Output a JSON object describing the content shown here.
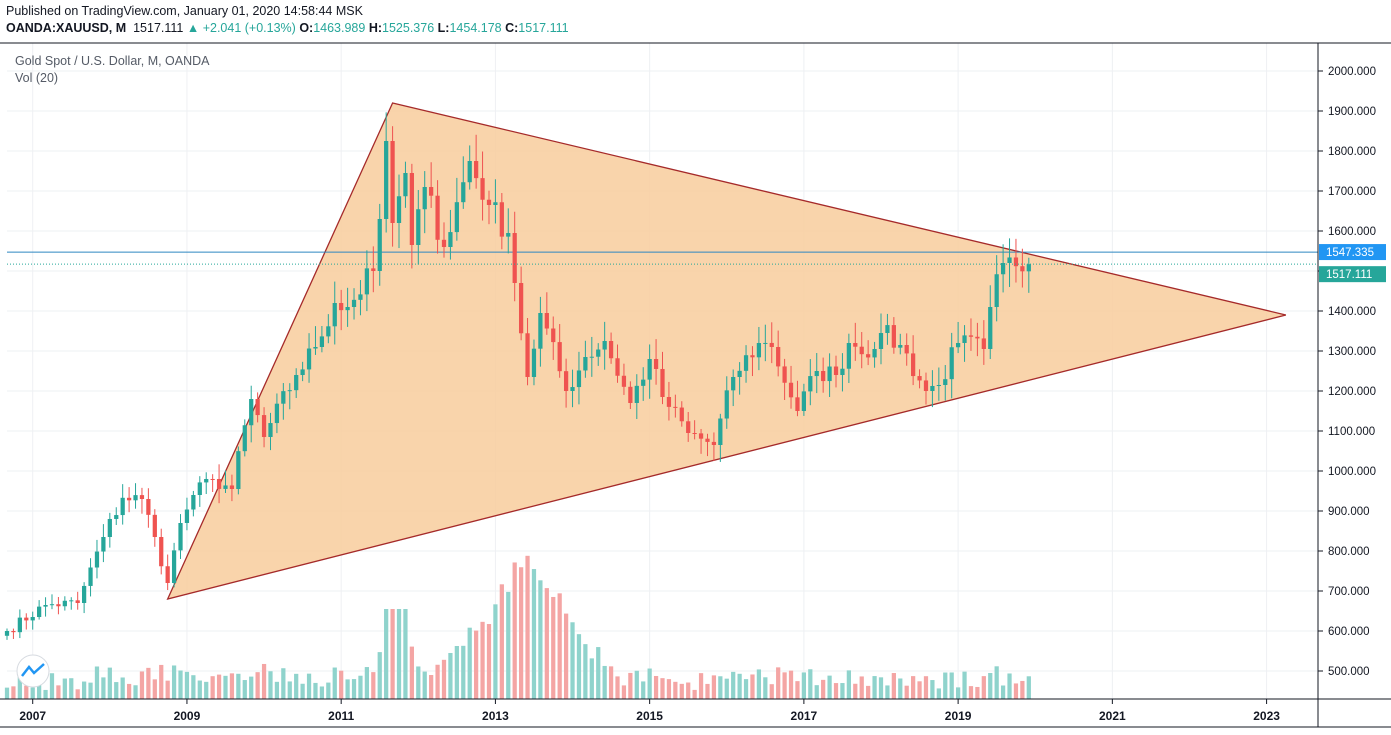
{
  "header": {
    "published": "Published on TradingView.com, January 01, 2020 14:58:44 MSK",
    "symbol": "OANDA:XAUUSD, M",
    "last": "1517.111",
    "change": "▲ +2.041 (+0.13%)",
    "o_label": "O:",
    "o_value": "1463.989",
    "h_label": "H:",
    "h_value": "1525.376",
    "l_label": "L:",
    "l_value": "1454.178",
    "c_label": "C:",
    "c_value": "1517.111"
  },
  "legend": {
    "title": "Gold Spot / U.S. Dollar, M, OANDA",
    "volume": "Vol (20)"
  },
  "colors": {
    "up": "#26a69a",
    "down": "#ef5350",
    "vol_up": "#8fd3cc",
    "vol_down": "#f4a5a4",
    "triangle_fill": "#f8cc9c",
    "triangle_line": "#a52a2a",
    "hline": "#2e86c1",
    "grid": "#eef0f3"
  },
  "price_labels": {
    "line_price": "1547.335",
    "last_price": "1517.111"
  },
  "chart_data": {
    "type": "candlestick",
    "title": "Gold Spot / U.S. Dollar, M, OANDA",
    "x_tick_labels": [
      "2007",
      "2009",
      "2011",
      "2013",
      "2015",
      "2017",
      "2019",
      "2021",
      "2023"
    ],
    "y_tick_labels": [
      "500.000",
      "600.000",
      "700.000",
      "800.000",
      "900.000",
      "1000.000",
      "1100.000",
      "1200.000",
      "1300.000",
      "1400.000",
      "1500.000",
      "1600.000",
      "1700.000",
      "1800.000",
      "1900.000",
      "2000.000"
    ],
    "ylim": [
      430,
      2070
    ],
    "xlim": [
      "2006-09",
      "2023-09"
    ],
    "grid": true,
    "horizontal_line": 1547.335,
    "triangle": [
      {
        "date": "2008-10",
        "price": 680
      },
      {
        "date": "2011-09",
        "price": 1920
      },
      {
        "date": "2023-04",
        "price": 1390
      }
    ],
    "close_anchors": [
      [
        "2006-09",
        600
      ],
      [
        "2007-03",
        665
      ],
      [
        "2007-08",
        670
      ],
      [
        "2007-12",
        835
      ],
      [
        "2008-03",
        933
      ],
      [
        "2008-06",
        930
      ],
      [
        "2008-08",
        835
      ],
      [
        "2008-10",
        720
      ],
      [
        "2008-12",
        870
      ],
      [
        "2009-02",
        940
      ],
      [
        "2009-05",
        980
      ],
      [
        "2009-08",
        955
      ],
      [
        "2009-11",
        1180
      ],
      [
        "2010-01",
        1085
      ],
      [
        "2010-06",
        1240
      ],
      [
        "2010-09",
        1310
      ],
      [
        "2010-12",
        1420
      ],
      [
        "2011-02",
        1410
      ],
      [
        "2011-06",
        1500
      ],
      [
        "2011-07",
        1630
      ],
      [
        "2011-08",
        1825
      ],
      [
        "2011-09",
        1620
      ],
      [
        "2011-11",
        1745
      ],
      [
        "2011-12",
        1565
      ],
      [
        "2012-02",
        1710
      ],
      [
        "2012-05",
        1560
      ],
      [
        "2012-09",
        1775
      ],
      [
        "2012-12",
        1665
      ],
      [
        "2013-03",
        1595
      ],
      [
        "2013-04",
        1470
      ],
      [
        "2013-06",
        1235
      ],
      [
        "2013-08",
        1395
      ],
      [
        "2013-12",
        1200
      ],
      [
        "2014-03",
        1285
      ],
      [
        "2014-06",
        1325
      ],
      [
        "2014-10",
        1170
      ],
      [
        "2015-01",
        1280
      ],
      [
        "2015-03",
        1185
      ],
      [
        "2015-07",
        1095
      ],
      [
        "2015-11",
        1065
      ],
      [
        "2016-02",
        1235
      ],
      [
        "2016-06",
        1320
      ],
      [
        "2016-08",
        1310
      ],
      [
        "2016-12",
        1150
      ],
      [
        "2017-03",
        1250
      ],
      [
        "2017-06",
        1240
      ],
      [
        "2017-08",
        1320
      ],
      [
        "2017-12",
        1305
      ],
      [
        "2018-01",
        1345
      ],
      [
        "2018-04",
        1315
      ],
      [
        "2018-08",
        1200
      ],
      [
        "2018-10",
        1215
      ],
      [
        "2019-01",
        1320
      ],
      [
        "2019-05",
        1305
      ],
      [
        "2019-06",
        1410
      ],
      [
        "2019-08",
        1520
      ],
      [
        "2019-10",
        1512
      ],
      [
        "2019-12",
        1517
      ]
    ]
  }
}
